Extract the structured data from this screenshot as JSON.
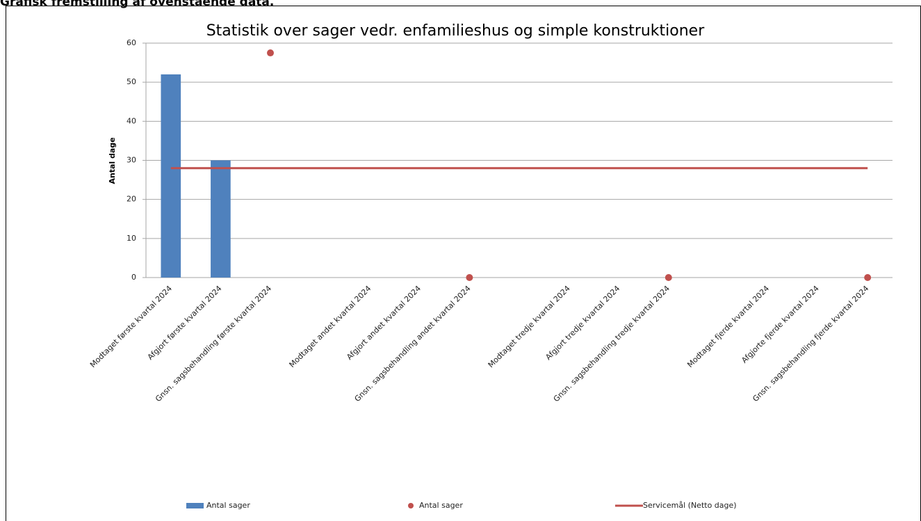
{
  "header": {
    "title": "Grafisk fremstilling af ovenstående data."
  },
  "chart_data": {
    "type": "combo",
    "title": "Statistik over sager vedr.  enfamilieshus og  simple konstruktioner",
    "y_label": "Antal dage",
    "categories": [
      "Modtaget første kvartal  2024",
      "Afgjort første kvartal 2024",
      "Gnsn. sagsbehandling første kvartal 2024",
      null,
      "Modtaget andet kvartal  2024",
      "Afgjort andet kvartal 2024",
      "Gnsn. sagsbehandling andet kvartal 2024",
      null,
      "Modtaget tredje kvartal 2024",
      "Afgjort tredje kvartal 2024",
      "Gnsn. sagsbehandling tredje kvartal 2024",
      null,
      "Modtaget fjerde kvartal 2024",
      "Afgjorte fjerde kvartal 2024",
      "Gnsn. sagsbehandling fjerde kvartal 2024"
    ],
    "series": [
      {
        "name": "Antal sager",
        "type": "bar",
        "color": "#4f81bd",
        "values": [
          52,
          30,
          null,
          null,
          null,
          null,
          null,
          null,
          null,
          null,
          null,
          null,
          null,
          null,
          null
        ]
      },
      {
        "name": "Antal sager",
        "type": "scatter",
        "color": "#c0504d",
        "values": [
          null,
          null,
          57.5,
          null,
          null,
          null,
          0,
          null,
          null,
          null,
          0,
          null,
          null,
          null,
          0
        ]
      },
      {
        "name": "Servicemål (Netto dage)",
        "type": "line",
        "color": "#c0504d",
        "values": [
          28,
          28,
          28,
          28,
          28,
          28,
          28,
          28,
          28,
          28,
          28,
          28,
          28,
          28,
          28
        ]
      }
    ],
    "ylim": [
      0,
      60
    ],
    "yticks": [
      0,
      10,
      20,
      30,
      40,
      50,
      60
    ],
    "grid": true
  }
}
